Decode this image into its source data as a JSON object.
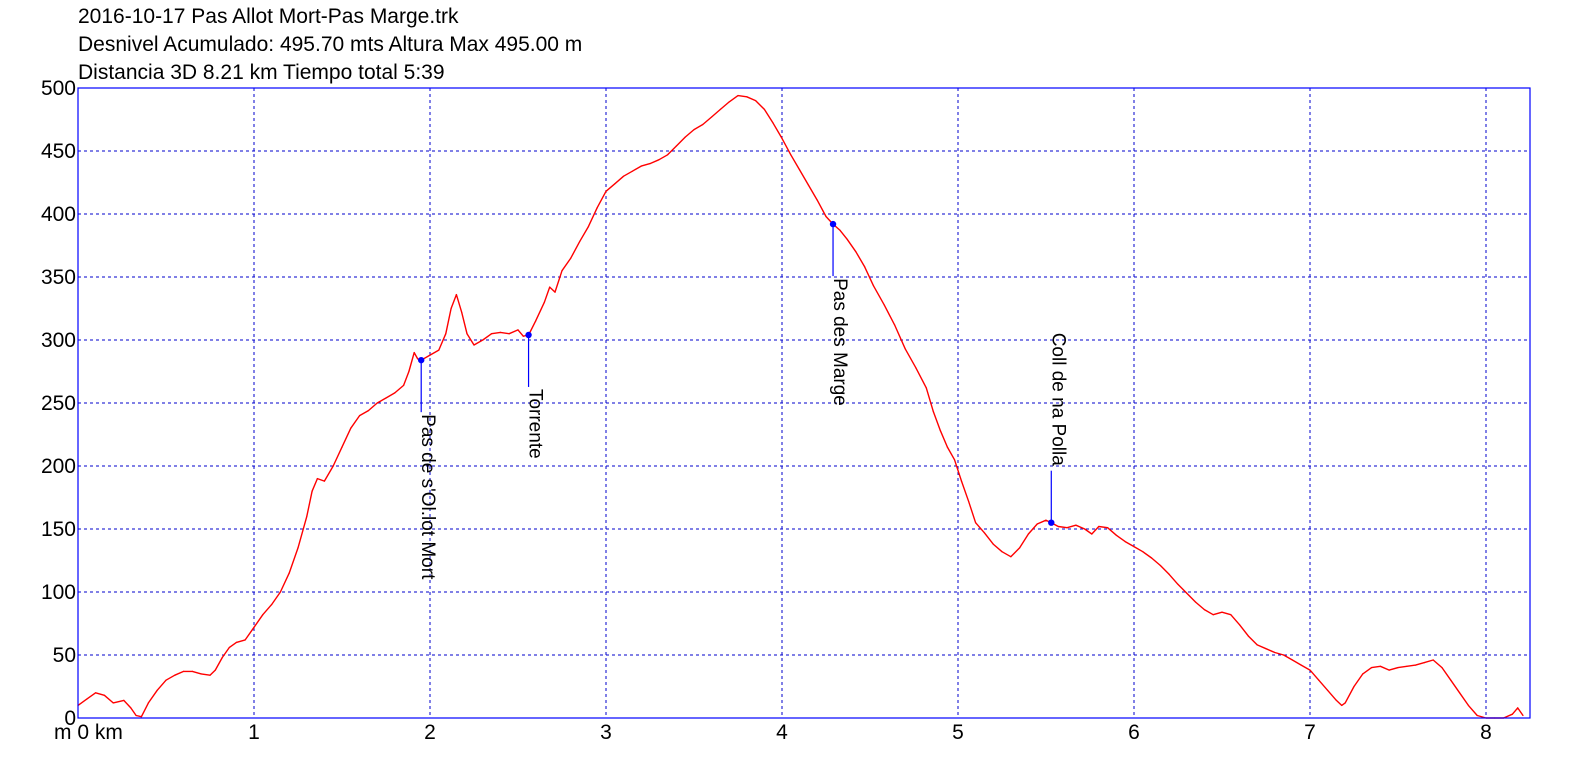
{
  "header": {
    "line1": "2016-10-17 Pas Allot Mort-Pas Marge.trk",
    "line2": "Desnivel Acumulado: 495.70 mts  Altura Max 495.00 m",
    "line3": "Distancia 3D 8.21 km  Tiempo total 5:39"
  },
  "colors": {
    "profile": "#ff0000",
    "grid": "#0000cc",
    "frame": "#0000ff",
    "waypoint": "#0000ff"
  },
  "chart_data": {
    "type": "line",
    "xlabel": "m 0 km",
    "ylabel": "",
    "xlim": [
      0,
      8.25
    ],
    "ylim": [
      0,
      500
    ],
    "grid": true,
    "x_ticks": [
      {
        "value": 0,
        "label": "m 0 km"
      },
      {
        "value": 1,
        "label": "1"
      },
      {
        "value": 2,
        "label": "2"
      },
      {
        "value": 3,
        "label": "3"
      },
      {
        "value": 4,
        "label": "4"
      },
      {
        "value": 5,
        "label": "5"
      },
      {
        "value": 6,
        "label": "6"
      },
      {
        "value": 7,
        "label": "7"
      },
      {
        "value": 8,
        "label": "8"
      }
    ],
    "y_ticks": [
      0,
      50,
      100,
      150,
      200,
      250,
      300,
      350,
      400,
      450,
      500
    ],
    "series": [
      {
        "points": [
          [
            0.0,
            10
          ],
          [
            0.05,
            15
          ],
          [
            0.1,
            20
          ],
          [
            0.15,
            18
          ],
          [
            0.2,
            12
          ],
          [
            0.26,
            14
          ],
          [
            0.3,
            8
          ],
          [
            0.33,
            2
          ],
          [
            0.36,
            1
          ],
          [
            0.4,
            12
          ],
          [
            0.45,
            22
          ],
          [
            0.5,
            30
          ],
          [
            0.55,
            34
          ],
          [
            0.6,
            37
          ],
          [
            0.65,
            37
          ],
          [
            0.7,
            35
          ],
          [
            0.75,
            34
          ],
          [
            0.78,
            38
          ],
          [
            0.82,
            48
          ],
          [
            0.86,
            56
          ],
          [
            0.9,
            60
          ],
          [
            0.95,
            62
          ],
          [
            1.0,
            72
          ],
          [
            1.05,
            82
          ],
          [
            1.1,
            90
          ],
          [
            1.15,
            100
          ],
          [
            1.2,
            115
          ],
          [
            1.25,
            135
          ],
          [
            1.3,
            160
          ],
          [
            1.33,
            180
          ],
          [
            1.36,
            190
          ],
          [
            1.4,
            188
          ],
          [
            1.45,
            200
          ],
          [
            1.5,
            215
          ],
          [
            1.55,
            230
          ],
          [
            1.6,
            240
          ],
          [
            1.65,
            244
          ],
          [
            1.7,
            250
          ],
          [
            1.75,
            254
          ],
          [
            1.8,
            258
          ],
          [
            1.85,
            264
          ],
          [
            1.88,
            275
          ],
          [
            1.91,
            290
          ],
          [
            1.93,
            285
          ],
          [
            1.95,
            284
          ],
          [
            2.0,
            288
          ],
          [
            2.05,
            292
          ],
          [
            2.09,
            305
          ],
          [
            2.12,
            325
          ],
          [
            2.15,
            336
          ],
          [
            2.18,
            322
          ],
          [
            2.21,
            305
          ],
          [
            2.25,
            296
          ],
          [
            2.3,
            300
          ],
          [
            2.35,
            305
          ],
          [
            2.4,
            306
          ],
          [
            2.45,
            305
          ],
          [
            2.5,
            308
          ],
          [
            2.53,
            303
          ],
          [
            2.56,
            304
          ],
          [
            2.6,
            315
          ],
          [
            2.65,
            330
          ],
          [
            2.68,
            342
          ],
          [
            2.71,
            338
          ],
          [
            2.75,
            355
          ],
          [
            2.8,
            365
          ],
          [
            2.85,
            378
          ],
          [
            2.9,
            390
          ],
          [
            2.95,
            405
          ],
          [
            3.0,
            418
          ],
          [
            3.05,
            424
          ],
          [
            3.1,
            430
          ],
          [
            3.15,
            434
          ],
          [
            3.2,
            438
          ],
          [
            3.25,
            440
          ],
          [
            3.3,
            443
          ],
          [
            3.35,
            447
          ],
          [
            3.4,
            454
          ],
          [
            3.45,
            461
          ],
          [
            3.5,
            467
          ],
          [
            3.55,
            471
          ],
          [
            3.6,
            477
          ],
          [
            3.65,
            483
          ],
          [
            3.7,
            489
          ],
          [
            3.75,
            494
          ],
          [
            3.8,
            493
          ],
          [
            3.85,
            490
          ],
          [
            3.9,
            483
          ],
          [
            3.95,
            472
          ],
          [
            4.0,
            460
          ],
          [
            4.05,
            447
          ],
          [
            4.1,
            435
          ],
          [
            4.15,
            423
          ],
          [
            4.2,
            411
          ],
          [
            4.25,
            398
          ],
          [
            4.29,
            392
          ],
          [
            4.33,
            387
          ],
          [
            4.37,
            380
          ],
          [
            4.42,
            370
          ],
          [
            4.47,
            358
          ],
          [
            4.52,
            343
          ],
          [
            4.58,
            328
          ],
          [
            4.64,
            312
          ],
          [
            4.7,
            293
          ],
          [
            4.76,
            278
          ],
          [
            4.82,
            262
          ],
          [
            4.86,
            243
          ],
          [
            4.9,
            228
          ],
          [
            4.94,
            215
          ],
          [
            4.98,
            205
          ],
          [
            5.02,
            188
          ],
          [
            5.06,
            172
          ],
          [
            5.1,
            155
          ],
          [
            5.15,
            147
          ],
          [
            5.2,
            138
          ],
          [
            5.25,
            132
          ],
          [
            5.3,
            128
          ],
          [
            5.35,
            135
          ],
          [
            5.4,
            146
          ],
          [
            5.45,
            154
          ],
          [
            5.5,
            157
          ],
          [
            5.53,
            155
          ],
          [
            5.57,
            152
          ],
          [
            5.62,
            151
          ],
          [
            5.67,
            153
          ],
          [
            5.72,
            150
          ],
          [
            5.76,
            146
          ],
          [
            5.8,
            152
          ],
          [
            5.85,
            151
          ],
          [
            5.9,
            145
          ],
          [
            5.95,
            140
          ],
          [
            6.0,
            136
          ],
          [
            6.05,
            132
          ],
          [
            6.1,
            127
          ],
          [
            6.15,
            121
          ],
          [
            6.2,
            114
          ],
          [
            6.25,
            106
          ],
          [
            6.3,
            99
          ],
          [
            6.35,
            92
          ],
          [
            6.4,
            86
          ],
          [
            6.45,
            82
          ],
          [
            6.5,
            84
          ],
          [
            6.55,
            82
          ],
          [
            6.6,
            74
          ],
          [
            6.65,
            65
          ],
          [
            6.7,
            58
          ],
          [
            6.75,
            55
          ],
          [
            6.8,
            52
          ],
          [
            6.85,
            50
          ],
          [
            6.9,
            46
          ],
          [
            6.95,
            42
          ],
          [
            7.0,
            38
          ],
          [
            7.05,
            30
          ],
          [
            7.1,
            22
          ],
          [
            7.15,
            14
          ],
          [
            7.18,
            10
          ],
          [
            7.2,
            12
          ],
          [
            7.25,
            25
          ],
          [
            7.3,
            35
          ],
          [
            7.35,
            40
          ],
          [
            7.4,
            41
          ],
          [
            7.45,
            38
          ],
          [
            7.5,
            40
          ],
          [
            7.55,
            41
          ],
          [
            7.6,
            42
          ],
          [
            7.65,
            44
          ],
          [
            7.7,
            46
          ],
          [
            7.75,
            40
          ],
          [
            7.8,
            30
          ],
          [
            7.85,
            20
          ],
          [
            7.9,
            10
          ],
          [
            7.95,
            2
          ],
          [
            8.0,
            0
          ],
          [
            8.05,
            0
          ],
          [
            8.1,
            0
          ],
          [
            8.15,
            3
          ],
          [
            8.18,
            8
          ],
          [
            8.21,
            2
          ]
        ]
      }
    ],
    "waypoints": [
      {
        "label": "Pas de s'Ol.lot Mort",
        "x": 1.95,
        "y": 284
      },
      {
        "label": "Torrente",
        "x": 2.56,
        "y": 304
      },
      {
        "label": "Pas des Marge",
        "x": 4.29,
        "y": 392
      },
      {
        "label": "Coll de na Polla",
        "x": 5.53,
        "y": 155
      }
    ]
  }
}
